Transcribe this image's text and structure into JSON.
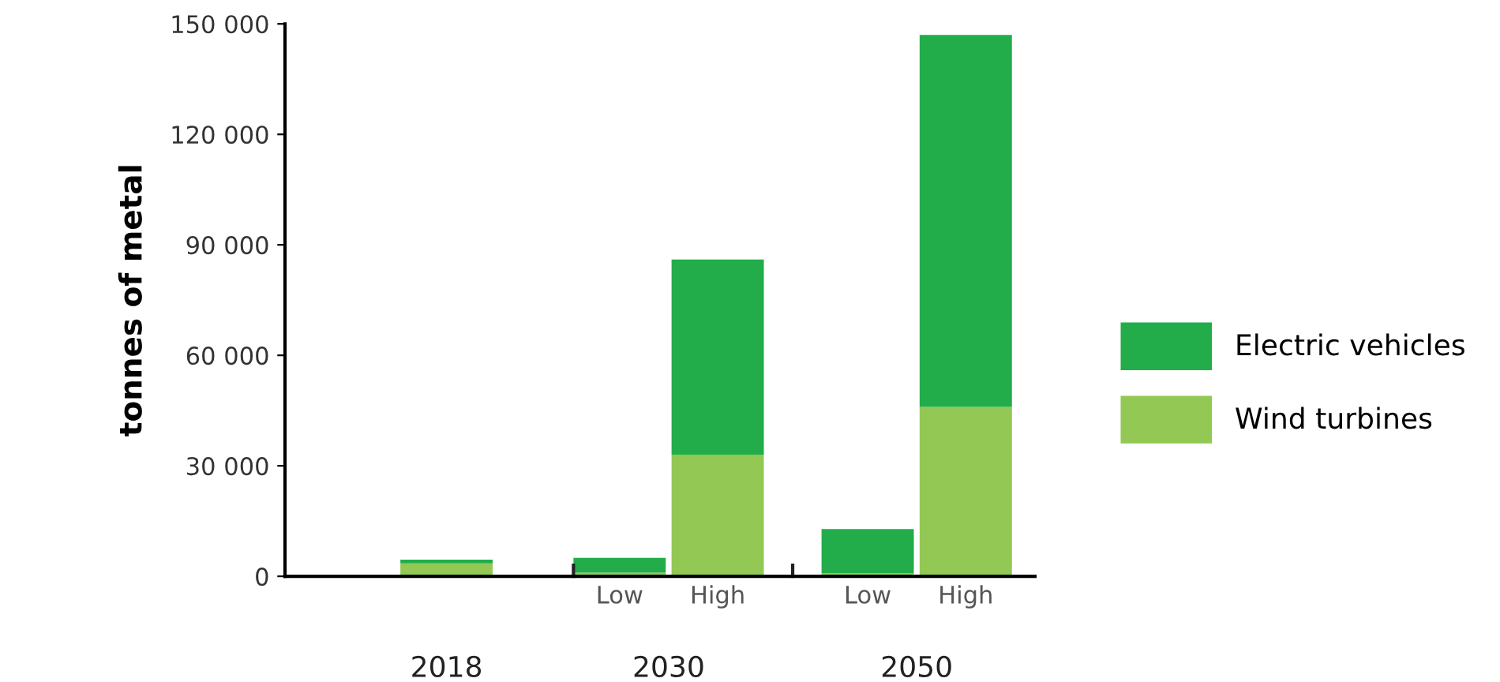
{
  "chart_data": {
    "type": "bar",
    "stacked": true,
    "ylabel": "tonnes of metal",
    "categories": [
      null,
      "Low",
      "High",
      "Low",
      "High"
    ],
    "annotations": [
      "2018",
      "2030",
      "2050"
    ],
    "series": [
      {
        "name": "Wind turbines",
        "color": "#92c853",
        "values": [
          3500,
          1000,
          33000,
          800,
          46000
        ]
      },
      {
        "name": "Electric vehicles",
        "color": "#22ad4a",
        "values": [
          1000,
          4000,
          53000,
          12000,
          101000
        ]
      }
    ],
    "ylim": [
      0,
      150000
    ],
    "yticks": [
      0,
      {
        "value": 30000,
        "label": "30 000"
      },
      {
        "value": 60000,
        "label": "60 000"
      },
      {
        "value": 90000,
        "label": "90 000"
      },
      {
        "value": 120000,
        "label": "120 000"
      },
      {
        "value": 150000,
        "label": "150 000"
      }
    ],
    "grid": false,
    "legend": "right"
  }
}
